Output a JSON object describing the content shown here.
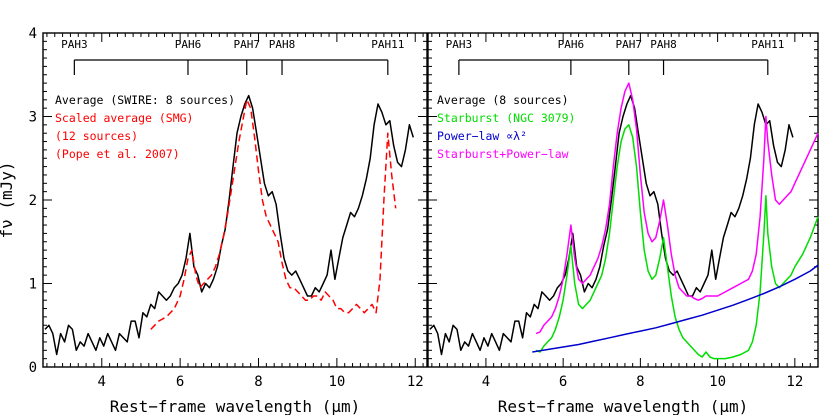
{
  "chart_data": [
    {
      "type": "line",
      "panel": "left",
      "xlabel": "Rest−frame wavelength (μm)",
      "ylabel": "fν (mJy)",
      "xlim": [
        2.5,
        12.3
      ],
      "ylim": [
        0,
        4
      ],
      "xticks": [
        "4",
        "6",
        "8",
        "10",
        "12"
      ],
      "yticks": [
        "0",
        "1",
        "2",
        "3",
        "4"
      ],
      "pah_features": [
        {
          "label": "PAH3",
          "x": 3.3
        },
        {
          "label": "PAH6",
          "x": 6.2
        },
        {
          "label": "PAH7",
          "x": 7.7
        },
        {
          "label": "PAH8",
          "x": 8.6
        },
        {
          "label": "PAH11",
          "x": 11.3
        }
      ],
      "legend": [
        {
          "text": "Average (SWIRE: 8 sources)",
          "color": "#000000"
        },
        {
          "text": "Scaled average (SMG)",
          "color": "#ff0000"
        },
        {
          "text": "(12 sources)",
          "color": "#ff0000"
        },
        {
          "text": "(Pope et al. 2007)",
          "color": "#ff0000"
        }
      ],
      "series": [
        {
          "name": "Average (SWIRE: 8 sources)",
          "color": "#000000",
          "style": "solid",
          "x": [
            2.55,
            2.65,
            2.75,
            2.85,
            2.95,
            3.05,
            3.15,
            3.25,
            3.35,
            3.45,
            3.55,
            3.65,
            3.75,
            3.85,
            3.95,
            4.05,
            4.15,
            4.25,
            4.35,
            4.45,
            4.55,
            4.65,
            4.75,
            4.85,
            4.95,
            5.05,
            5.15,
            5.25,
            5.35,
            5.45,
            5.55,
            5.65,
            5.75,
            5.85,
            5.95,
            6.05,
            6.15,
            6.25,
            6.35,
            6.45,
            6.55,
            6.65,
            6.75,
            6.85,
            6.95,
            7.05,
            7.15,
            7.25,
            7.35,
            7.45,
            7.55,
            7.65,
            7.75,
            7.85,
            7.95,
            8.05,
            8.15,
            8.25,
            8.35,
            8.45,
            8.55,
            8.65,
            8.75,
            8.85,
            8.95,
            9.05,
            9.15,
            9.25,
            9.35,
            9.45,
            9.55,
            9.65,
            9.75,
            9.85,
            9.95,
            10.05,
            10.15,
            10.25,
            10.35,
            10.45,
            10.55,
            10.65,
            10.75,
            10.85,
            10.95,
            11.05,
            11.15,
            11.25,
            11.35,
            11.45,
            11.55,
            11.65,
            11.75,
            11.85,
            11.95
          ],
          "y": [
            0.45,
            0.5,
            0.4,
            0.15,
            0.4,
            0.3,
            0.5,
            0.45,
            0.2,
            0.3,
            0.25,
            0.4,
            0.3,
            0.2,
            0.35,
            0.25,
            0.4,
            0.3,
            0.2,
            0.4,
            0.35,
            0.3,
            0.55,
            0.55,
            0.35,
            0.65,
            0.6,
            0.75,
            0.7,
            0.9,
            0.85,
            0.8,
            0.85,
            0.95,
            1.0,
            1.1,
            1.3,
            1.6,
            1.2,
            1.1,
            0.9,
            1.0,
            0.95,
            1.05,
            1.2,
            1.45,
            1.65,
            2.0,
            2.4,
            2.8,
            3.0,
            3.15,
            3.25,
            3.1,
            2.8,
            2.5,
            2.2,
            2.05,
            2.1,
            1.95,
            1.6,
            1.3,
            1.15,
            1.1,
            1.15,
            1.05,
            0.95,
            0.85,
            0.85,
            0.95,
            0.9,
            1.0,
            1.1,
            1.4,
            1.05,
            1.3,
            1.55,
            1.7,
            1.85,
            1.8,
            1.9,
            2.05,
            2.25,
            2.5,
            2.9,
            3.15,
            3.05,
            2.9,
            2.95,
            2.65,
            2.45,
            2.4,
            2.6,
            2.9,
            2.75
          ]
        },
        {
          "name": "Scaled average (SMG)",
          "color": "#ff0000",
          "style": "dashed",
          "x": [
            5.25,
            5.45,
            5.65,
            5.85,
            6.0,
            6.1,
            6.2,
            6.3,
            6.4,
            6.5,
            6.6,
            6.7,
            6.8,
            6.9,
            7.0,
            7.1,
            7.2,
            7.3,
            7.4,
            7.5,
            7.6,
            7.7,
            7.8,
            7.9,
            8.0,
            8.1,
            8.2,
            8.3,
            8.4,
            8.5,
            8.6,
            8.7,
            8.8,
            8.9,
            9.0,
            9.1,
            9.2,
            9.3,
            9.4,
            9.5,
            9.6,
            9.7,
            9.8,
            9.9,
            10.0,
            10.1,
            10.2,
            10.3,
            10.4,
            10.5,
            10.6,
            10.7,
            10.8,
            10.9,
            11.0,
            11.1,
            11.2,
            11.3,
            11.4,
            11.5
          ],
          "y": [
            0.45,
            0.55,
            0.6,
            0.7,
            0.85,
            1.05,
            1.3,
            1.4,
            1.1,
            0.95,
            1.0,
            1.05,
            1.1,
            1.2,
            1.35,
            1.55,
            1.8,
            2.1,
            2.4,
            2.7,
            2.95,
            3.2,
            3.1,
            2.75,
            2.35,
            2.0,
            1.8,
            1.7,
            1.6,
            1.5,
            1.25,
            1.05,
            0.95,
            0.95,
            0.9,
            0.85,
            0.8,
            0.8,
            0.85,
            0.85,
            0.8,
            0.9,
            0.85,
            0.8,
            0.7,
            0.7,
            0.65,
            0.65,
            0.7,
            0.75,
            0.7,
            0.65,
            0.7,
            0.75,
            0.65,
            1.05,
            2.0,
            2.8,
            2.3,
            1.9
          ]
        }
      ]
    },
    {
      "type": "line",
      "panel": "right",
      "xlabel": "Rest−frame wavelength (μm)",
      "xlim": [
        2.5,
        12.6
      ],
      "ylim": [
        0,
        4
      ],
      "xticks": [
        "4",
        "6",
        "8",
        "10",
        "12"
      ],
      "pah_features": [
        {
          "label": "PAH3",
          "x": 3.3
        },
        {
          "label": "PAH6",
          "x": 6.2
        },
        {
          "label": "PAH7",
          "x": 7.7
        },
        {
          "label": "PAH8",
          "x": 8.6
        },
        {
          "label": "PAH11",
          "x": 11.3
        }
      ],
      "legend": [
        {
          "text": "Average (8 sources)",
          "color": "#000000"
        },
        {
          "text": "Starburst (NGC 3079)",
          "color": "#00dd00"
        },
        {
          "text": "Power−law  ∝λ²",
          "color": "#0000cc"
        },
        {
          "text": "Starburst+Power−law",
          "color": "#ff00ff"
        }
      ],
      "series": [
        {
          "name": "Average (8 sources)",
          "color": "#000000",
          "style": "solid",
          "x": [
            2.55,
            2.65,
            2.75,
            2.85,
            2.95,
            3.05,
            3.15,
            3.25,
            3.35,
            3.45,
            3.55,
            3.65,
            3.75,
            3.85,
            3.95,
            4.05,
            4.15,
            4.25,
            4.35,
            4.45,
            4.55,
            4.65,
            4.75,
            4.85,
            4.95,
            5.05,
            5.15,
            5.25,
            5.35,
            5.45,
            5.55,
            5.65,
            5.75,
            5.85,
            5.95,
            6.05,
            6.15,
            6.25,
            6.35,
            6.45,
            6.55,
            6.65,
            6.75,
            6.85,
            6.95,
            7.05,
            7.15,
            7.25,
            7.35,
            7.45,
            7.55,
            7.65,
            7.75,
            7.85,
            7.95,
            8.05,
            8.15,
            8.25,
            8.35,
            8.45,
            8.55,
            8.65,
            8.75,
            8.85,
            8.95,
            9.05,
            9.15,
            9.25,
            9.35,
            9.45,
            9.55,
            9.65,
            9.75,
            9.85,
            9.95,
            10.05,
            10.15,
            10.25,
            10.35,
            10.45,
            10.55,
            10.65,
            10.75,
            10.85,
            10.95,
            11.05,
            11.15,
            11.25,
            11.35,
            11.45,
            11.55,
            11.65,
            11.75,
            11.85,
            11.95
          ],
          "y": [
            0.45,
            0.5,
            0.4,
            0.15,
            0.4,
            0.3,
            0.5,
            0.45,
            0.2,
            0.3,
            0.25,
            0.4,
            0.3,
            0.2,
            0.35,
            0.25,
            0.4,
            0.3,
            0.2,
            0.4,
            0.35,
            0.3,
            0.55,
            0.55,
            0.35,
            0.65,
            0.6,
            0.75,
            0.7,
            0.9,
            0.85,
            0.8,
            0.85,
            0.95,
            1.0,
            1.1,
            1.3,
            1.6,
            1.2,
            1.1,
            0.9,
            1.0,
            0.95,
            1.05,
            1.2,
            1.45,
            1.65,
            2.0,
            2.4,
            2.8,
            3.0,
            3.15,
            3.25,
            3.1,
            2.8,
            2.5,
            2.2,
            2.05,
            2.1,
            1.95,
            1.6,
            1.3,
            1.15,
            1.1,
            1.15,
            1.05,
            0.95,
            0.85,
            0.85,
            0.95,
            0.9,
            1.0,
            1.1,
            1.4,
            1.05,
            1.3,
            1.55,
            1.7,
            1.85,
            1.8,
            1.9,
            2.05,
            2.25,
            2.5,
            2.9,
            3.15,
            3.05,
            2.9,
            2.95,
            2.65,
            2.45,
            2.4,
            2.6,
            2.9,
            2.75
          ]
        },
        {
          "name": "Starburst (NGC 3079)",
          "color": "#00dd00",
          "style": "solid",
          "x": [
            5.3,
            5.4,
            5.5,
            5.6,
            5.7,
            5.8,
            5.9,
            6.0,
            6.1,
            6.2,
            6.3,
            6.4,
            6.5,
            6.6,
            6.7,
            6.8,
            6.9,
            7.0,
            7.1,
            7.2,
            7.3,
            7.4,
            7.5,
            7.6,
            7.7,
            7.8,
            7.9,
            8.0,
            8.1,
            8.2,
            8.3,
            8.4,
            8.5,
            8.6,
            8.7,
            8.8,
            8.9,
            9.0,
            9.1,
            9.2,
            9.3,
            9.4,
            9.5,
            9.6,
            9.7,
            9.8,
            9.9,
            10.0,
            10.2,
            10.4,
            10.6,
            10.8,
            10.9,
            11.0,
            11.1,
            11.2,
            11.25,
            11.3,
            11.4,
            11.5,
            11.6,
            11.7,
            11.8,
            11.9,
            12.0,
            12.2,
            12.4,
            12.6
          ],
          "y": [
            0.2,
            0.18,
            0.25,
            0.3,
            0.35,
            0.45,
            0.6,
            0.8,
            1.1,
            1.45,
            1.0,
            0.75,
            0.7,
            0.75,
            0.8,
            0.9,
            1.0,
            1.1,
            1.3,
            1.6,
            2.0,
            2.4,
            2.7,
            2.85,
            2.9,
            2.75,
            2.4,
            1.85,
            1.4,
            1.15,
            1.05,
            1.1,
            1.3,
            1.55,
            1.2,
            0.85,
            0.6,
            0.45,
            0.35,
            0.3,
            0.25,
            0.2,
            0.15,
            0.12,
            0.18,
            0.12,
            0.1,
            0.1,
            0.1,
            0.12,
            0.15,
            0.2,
            0.3,
            0.5,
            0.9,
            1.6,
            2.05,
            1.6,
            1.2,
            1.0,
            0.95,
            1.0,
            1.05,
            1.1,
            1.2,
            1.35,
            1.55,
            1.8
          ]
        },
        {
          "name": "Power−law  ∝λ²",
          "color": "#0000cc",
          "style": "solid",
          "x": [
            5.2,
            5.6,
            6.0,
            6.4,
            6.8,
            7.2,
            7.6,
            8.0,
            8.4,
            8.8,
            9.2,
            9.6,
            10.0,
            10.4,
            10.8,
            11.2,
            11.6,
            12.0,
            12.4,
            12.6
          ],
          "y": [
            0.18,
            0.21,
            0.24,
            0.27,
            0.31,
            0.35,
            0.39,
            0.43,
            0.47,
            0.52,
            0.57,
            0.62,
            0.68,
            0.74,
            0.81,
            0.88,
            0.96,
            1.05,
            1.15,
            1.22
          ]
        },
        {
          "name": "Starburst+Power−law",
          "color": "#ff00ff",
          "style": "solid",
          "x": [
            5.3,
            5.4,
            5.5,
            5.6,
            5.7,
            5.8,
            5.9,
            6.0,
            6.1,
            6.2,
            6.3,
            6.4,
            6.5,
            6.6,
            6.7,
            6.8,
            6.9,
            7.0,
            7.1,
            7.2,
            7.3,
            7.4,
            7.5,
            7.6,
            7.7,
            7.8,
            7.9,
            8.0,
            8.1,
            8.2,
            8.3,
            8.4,
            8.5,
            8.6,
            8.7,
            8.8,
            8.9,
            9.0,
            9.1,
            9.2,
            9.3,
            9.4,
            9.5,
            9.6,
            9.7,
            9.8,
            9.9,
            10.0,
            10.2,
            10.4,
            10.6,
            10.8,
            10.9,
            11.0,
            11.1,
            11.2,
            11.25,
            11.3,
            11.4,
            11.5,
            11.6,
            11.7,
            11.8,
            11.9,
            12.0,
            12.2,
            12.4,
            12.6
          ],
          "y": [
            0.4,
            0.42,
            0.5,
            0.55,
            0.6,
            0.7,
            0.85,
            1.05,
            1.35,
            1.7,
            1.3,
            1.05,
            1.0,
            1.05,
            1.1,
            1.2,
            1.3,
            1.45,
            1.65,
            1.95,
            2.4,
            2.8,
            3.1,
            3.3,
            3.4,
            3.2,
            2.85,
            2.3,
            1.85,
            1.6,
            1.5,
            1.55,
            1.75,
            2.0,
            1.7,
            1.35,
            1.1,
            0.95,
            0.9,
            0.85,
            0.85,
            0.82,
            0.8,
            0.82,
            0.85,
            0.85,
            0.85,
            0.85,
            0.9,
            0.95,
            1.0,
            1.05,
            1.15,
            1.35,
            1.8,
            2.5,
            3.0,
            2.7,
            2.3,
            2.0,
            1.95,
            2.0,
            2.05,
            2.1,
            2.2,
            2.4,
            2.6,
            2.8
          ]
        }
      ]
    }
  ]
}
